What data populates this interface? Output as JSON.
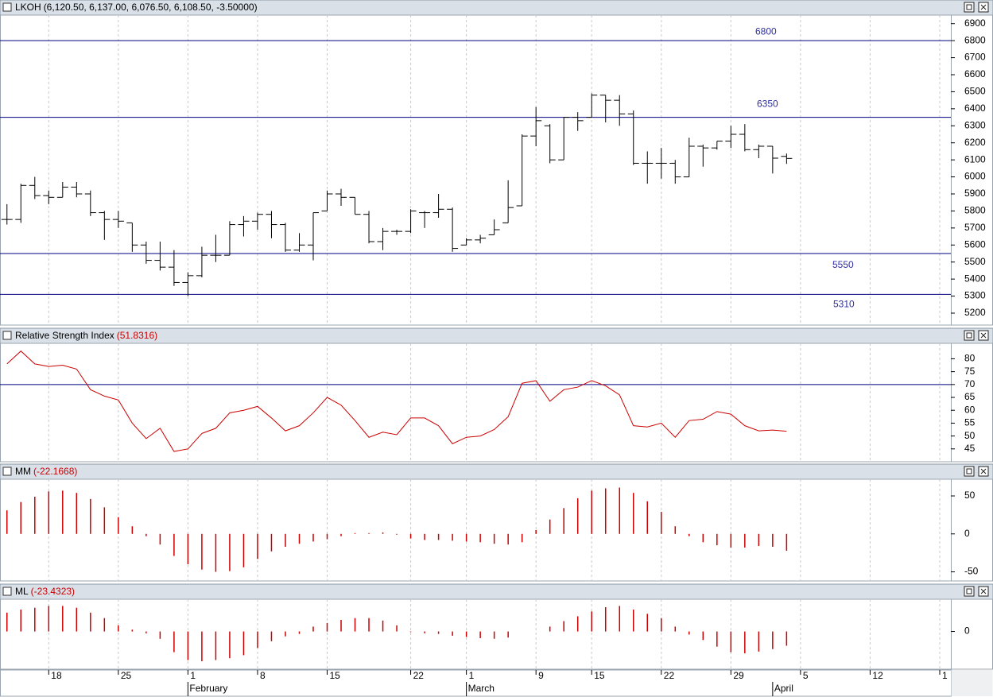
{
  "chart_data": [
    {
      "type": "ohlc",
      "title": "LKOH",
      "value_text": "(6,120.50, 6,137.00, 6,076.50, 6,108.50, -3.50000)",
      "color": "#000000",
      "open": [
        5750,
        5750,
        5950,
        5890,
        5880,
        5940,
        5900,
        5790,
        5750,
        5730,
        5600,
        5510,
        5470,
        5380,
        5420,
        5540,
        5540,
        5720,
        5740,
        5780,
        5720,
        5570,
        5600,
        5800,
        5900,
        5880,
        5780,
        5620,
        5680,
        5680,
        5790,
        5790,
        5810,
        5600,
        5630,
        5660,
        5730,
        5830,
        6240,
        6300,
        6100,
        6350,
        6350,
        6480,
        6450,
        6370,
        6080,
        6080,
        6080,
        6000,
        6180,
        6170,
        6210,
        6250,
        6160,
        6180,
        6120.5
      ],
      "high": [
        5840,
        5960,
        6000,
        5920,
        5970,
        5970,
        5920,
        5800,
        5800,
        5730,
        5620,
        5620,
        5570,
        5440,
        5590,
        5660,
        5740,
        5770,
        5790,
        5800,
        5730,
        5670,
        5790,
        5920,
        5930,
        5880,
        5800,
        5700,
        5690,
        5810,
        5800,
        5900,
        5820,
        5640,
        5660,
        5750,
        5980,
        6250,
        6410,
        6310,
        6350,
        6380,
        6490,
        6480,
        6480,
        6390,
        6150,
        6170,
        6100,
        6230,
        6190,
        6210,
        6300,
        6310,
        6190,
        6180,
        6137
      ],
      "low": [
        5720,
        5730,
        5870,
        5840,
        5880,
        5880,
        5770,
        5630,
        5700,
        5560,
        5490,
        5450,
        5360,
        5300,
        5410,
        5500,
        5540,
        5650,
        5690,
        5640,
        5560,
        5560,
        5510,
        5800,
        5830,
        5780,
        5610,
        5570,
        5660,
        5670,
        5700,
        5760,
        5560,
        5600,
        5610,
        5660,
        5730,
        5830,
        6180,
        6080,
        6100,
        6270,
        6350,
        6320,
        6300,
        6070,
        5960,
        5990,
        5960,
        6000,
        6060,
        6160,
        6170,
        6150,
        6110,
        6020,
        6076.5
      ],
      "close": [
        5750,
        5950,
        5890,
        5880,
        5940,
        5900,
        5790,
        5750,
        5740,
        5600,
        5510,
        5470,
        5380,
        5420,
        5540,
        5540,
        5720,
        5740,
        5780,
        5720,
        5570,
        5600,
        5790,
        5900,
        5880,
        5780,
        5620,
        5680,
        5680,
        5800,
        5790,
        5810,
        5580,
        5630,
        5640,
        5690,
        5820,
        6240,
        6330,
        6100,
        6350,
        6330,
        6480,
        6450,
        6370,
        6080,
        6080,
        6080,
        6000,
        6180,
        6170,
        6210,
        6250,
        6160,
        6180,
        6110,
        6108.5
      ],
      "ylim": [
        5130,
        6950
      ],
      "yticks": [
        5200,
        5300,
        5400,
        5500,
        5600,
        5700,
        5800,
        5900,
        6000,
        6100,
        6200,
        6300,
        6400,
        6500,
        6600,
        6700,
        6800,
        6900
      ],
      "hlines": [
        6800,
        6350,
        5550,
        5310
      ],
      "hline_color": "#000080",
      "hline_label_color": "#2e2e9e"
    },
    {
      "type": "line",
      "title": "Relative Strength Index",
      "value_text": "(51.8316)",
      "color": "#cc0000",
      "values": [
        78,
        83,
        78,
        77,
        77.5,
        76,
        68,
        65.5,
        64,
        55,
        49,
        53,
        44,
        45,
        51,
        53,
        59,
        60,
        61.5,
        57,
        52,
        54,
        59,
        65,
        62,
        56,
        49.5,
        51.5,
        50.5,
        57,
        57,
        54,
        47,
        49.5,
        50,
        52.5,
        57.5,
        70.5,
        71.5,
        63.5,
        68,
        69,
        71.5,
        69.5,
        66,
        54,
        53.5,
        55,
        49.5,
        56,
        56.5,
        59.5,
        58.5,
        54,
        52,
        52.3,
        51.8316
      ],
      "ylim": [
        40,
        86
      ],
      "yticks": [
        45,
        50,
        55,
        60,
        65,
        70,
        75,
        80
      ],
      "hlines": [
        70
      ],
      "hline_color": "#000080"
    },
    {
      "type": "bar",
      "title": "MM",
      "value_text": "(-22.1668)",
      "color": "#cc0000",
      "values": [
        31,
        42,
        49,
        56,
        57,
        54,
        46,
        35,
        22,
        10,
        -3,
        -14,
        -29,
        -40,
        -47,
        -50,
        -49,
        -44,
        -33,
        -23,
        -17,
        -13,
        -10,
        -7,
        -3,
        1,
        1,
        2,
        -1,
        -6,
        -8,
        -8,
        -9,
        -10,
        -11,
        -13,
        -14,
        -11,
        5,
        19,
        34,
        47,
        57,
        60,
        61,
        54,
        43,
        29,
        10,
        -3,
        -11,
        -15,
        -18,
        -18,
        -16,
        -17,
        -22.1668
      ],
      "ylim": [
        -62,
        72
      ],
      "yticks": [
        -50,
        0,
        50
      ]
    },
    {
      "type": "bar",
      "title": "ML",
      "value_text": "(-23.4323)",
      "color": "#cc0000",
      "values": [
        31,
        36,
        39,
        42,
        42,
        39,
        31,
        22,
        10,
        3,
        -3,
        -12,
        -34,
        -47,
        -49,
        -47,
        -44,
        -39,
        -27,
        -16,
        -8,
        -4,
        8,
        14,
        19,
        22,
        22,
        18,
        10,
        -1,
        -3,
        -4,
        -7,
        -9,
        -11,
        -12,
        -10,
        0,
        0,
        8,
        17,
        25,
        33,
        40,
        42,
        36,
        29,
        22,
        8,
        -5,
        -14,
        -25,
        -34,
        -36,
        -33,
        -29,
        -23.4323
      ],
      "ylim": [
        -62,
        53
      ],
      "yticks": [
        0
      ],
      "xlim": [
        -0.5,
        67.8
      ],
      "xticks": [
        {
          "value": 3,
          "label": "18"
        },
        {
          "value": 8,
          "label": "25"
        },
        {
          "value": 13,
          "label": "1"
        },
        {
          "value": 18,
          "label": "8"
        },
        {
          "value": 23,
          "label": "15"
        },
        {
          "value": 29,
          "label": "22"
        },
        {
          "value": 33,
          "label": "1"
        },
        {
          "value": 38,
          "label": "9"
        },
        {
          "value": 42,
          "label": "15"
        },
        {
          "value": 47,
          "label": "22"
        },
        {
          "value": 52,
          "label": "29"
        },
        {
          "value": 57,
          "label": "5"
        },
        {
          "value": 62,
          "label": "12"
        },
        {
          "value": 67,
          "label": "1"
        }
      ],
      "month_ticks": [
        {
          "value": 13,
          "label": "February"
        },
        {
          "value": 33,
          "label": "March"
        },
        {
          "value": 55,
          "label": "April"
        }
      ]
    }
  ]
}
